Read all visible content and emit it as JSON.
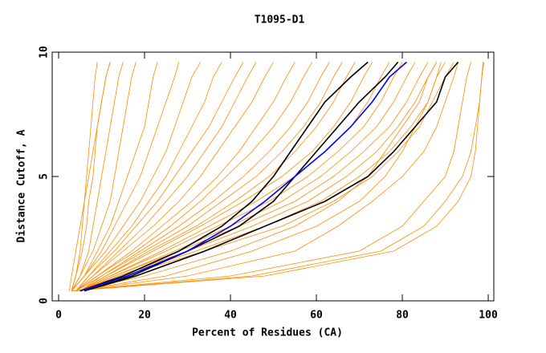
{
  "chart_data": {
    "type": "line",
    "title": "T1095-D1",
    "x_label": "Percent of Residues (CA)",
    "y_label": "Distance Cutoff, A",
    "xlim": [
      -1.5,
      101.3
    ],
    "ylim": [
      0,
      10
    ],
    "xticks": [
      0,
      20,
      40,
      60,
      80,
      100
    ],
    "yticks": [
      0,
      5,
      10
    ],
    "y": [
      0.4,
      1,
      2,
      3,
      4,
      5,
      6,
      7,
      8,
      9,
      9.6
    ],
    "series": [
      {
        "color": "#ff8c00",
        "x": [
          3,
          4,
          5,
          5.5,
          6,
          6.5,
          7,
          7.5,
          8,
          8.5,
          9
        ]
      },
      {
        "color": "#ff8c00",
        "x": [
          2.5,
          3,
          4,
          5,
          6,
          7,
          8,
          9,
          10,
          11,
          12
        ]
      },
      {
        "color": "#ff8c00",
        "x": [
          3,
          4,
          5.5,
          6.5,
          7,
          8,
          8.5,
          9,
          10,
          11,
          12
        ]
      },
      {
        "color": "#ff8c00",
        "x": [
          3,
          5,
          7,
          8,
          9,
          10,
          11,
          12,
          13,
          14,
          15
        ]
      },
      {
        "color": "#ff8c00",
        "x": [
          3,
          5,
          8,
          10,
          12,
          13,
          14,
          15,
          16,
          17,
          18
        ]
      },
      {
        "color": "#ff8c00",
        "x": [
          3,
          6,
          9,
          12,
          14,
          16,
          18,
          20,
          21,
          22,
          23
        ]
      },
      {
        "color": "#ff8c00",
        "x": [
          3,
          6,
          10,
          13,
          16,
          19,
          21,
          23,
          25,
          27,
          28
        ]
      },
      {
        "color": "#ff8c00",
        "x": [
          3,
          6,
          11,
          15,
          19,
          22,
          25,
          27,
          29,
          31,
          33
        ]
      },
      {
        "color": "#ff8c00",
        "x": [
          4,
          7,
          12,
          17,
          21,
          25,
          28,
          31,
          34,
          36,
          38
        ]
      },
      {
        "color": "#ff8c00",
        "x": [
          4,
          7,
          13,
          18,
          23,
          27,
          31,
          35,
          38,
          41,
          43
        ]
      },
      {
        "color": "#ff8c00",
        "x": [
          4,
          8,
          14,
          20,
          25,
          30,
          34,
          38,
          41,
          44,
          46
        ]
      },
      {
        "color": "#ff8c00",
        "x": [
          4,
          8,
          15,
          22,
          28,
          33,
          37,
          41,
          45,
          48,
          50
        ]
      },
      {
        "color": "#ff8c00",
        "x": [
          4,
          9,
          17,
          24,
          31,
          37,
          42,
          46,
          50,
          53,
          55
        ]
      },
      {
        "color": "#ff8c00",
        "x": [
          4,
          9,
          18,
          26,
          33,
          39,
          45,
          50,
          54,
          57,
          59
        ]
      },
      {
        "color": "#ff8c00",
        "x": [
          4,
          10,
          19,
          28,
          36,
          43,
          49,
          54,
          58,
          61,
          63
        ]
      },
      {
        "color": "#ff8c00",
        "x": [
          5,
          10,
          20,
          30,
          38,
          46,
          52,
          57,
          61,
          64,
          66
        ]
      },
      {
        "color": "#ff8c00",
        "x": [
          5,
          11,
          21,
          32,
          41,
          49,
          55,
          60,
          64,
          67,
          69
        ]
      },
      {
        "color": "#ff8c00",
        "x": [
          5,
          11,
          22,
          33,
          43,
          52,
          59,
          64,
          68,
          71,
          73
        ]
      },
      {
        "color": "#ff8c00",
        "x": [
          5,
          12,
          24,
          35,
          46,
          55,
          62,
          68,
          72,
          75,
          77
        ]
      },
      {
        "color": "#ff8c00",
        "x": [
          5,
          12,
          25,
          37,
          49,
          58,
          65,
          71,
          75,
          78,
          80
        ]
      },
      {
        "color": "#ff8c00",
        "x": [
          5,
          13,
          27,
          40,
          52,
          61,
          68,
          74,
          78,
          81,
          83
        ]
      },
      {
        "color": "#ff8c00",
        "x": [
          5,
          13,
          28,
          42,
          55,
          64,
          71,
          77,
          81,
          84,
          86
        ]
      },
      {
        "color": "#ff8c00",
        "x": [
          5,
          14,
          30,
          45,
          58,
          67,
          74,
          79,
          83,
          86,
          88
        ]
      },
      {
        "color": "#ff8c00",
        "x": [
          5,
          14,
          32,
          48,
          61,
          70,
          77,
          82,
          86,
          88,
          90
        ]
      },
      {
        "color": "#ff8c00",
        "x": [
          5,
          15,
          34,
          52,
          64,
          73,
          79,
          84,
          87,
          90,
          92
        ]
      },
      {
        "color": "#ff8c00",
        "x": [
          4,
          20,
          40,
          55,
          65,
          72,
          76,
          80,
          84,
          86,
          88
        ]
      },
      {
        "color": "#ff8c00",
        "x": [
          4,
          25,
          45,
          60,
          70,
          76,
          80,
          83,
          86,
          88,
          89
        ]
      },
      {
        "color": "#ff8c00",
        "x": [
          4,
          30,
          55,
          65,
          73,
          80,
          85,
          88,
          90,
          92,
          93
        ]
      },
      {
        "color": "#ff8c00",
        "x": [
          3,
          40,
          70,
          80,
          85,
          90,
          92,
          93,
          94,
          95,
          96
        ]
      },
      {
        "color": "#ff8c00",
        "x": [
          3,
          45,
          75,
          85,
          90,
          94,
          96,
          97,
          98,
          98.5,
          99
        ]
      },
      {
        "color": "#ff8c00",
        "x": [
          3,
          48,
          78,
          88,
          93,
          96,
          97,
          97.5,
          98,
          98.5,
          98.8
        ]
      },
      {
        "color": "#000000",
        "x": [
          5,
          15,
          28,
          38,
          45,
          50,
          54,
          58,
          62,
          68,
          72
        ]
      },
      {
        "color": "#000000",
        "x": [
          6,
          17,
          30,
          42,
          50,
          55,
          60,
          65,
          70,
          76,
          79
        ]
      },
      {
        "color": "#000000",
        "x": [
          6,
          18,
          34,
          48,
          62,
          72,
          78,
          83,
          88,
          90,
          93
        ]
      },
      {
        "color": "#0000ff",
        "x": [
          5,
          16,
          30,
          40,
          48,
          55,
          62,
          68,
          73,
          77,
          81
        ]
      }
    ]
  }
}
